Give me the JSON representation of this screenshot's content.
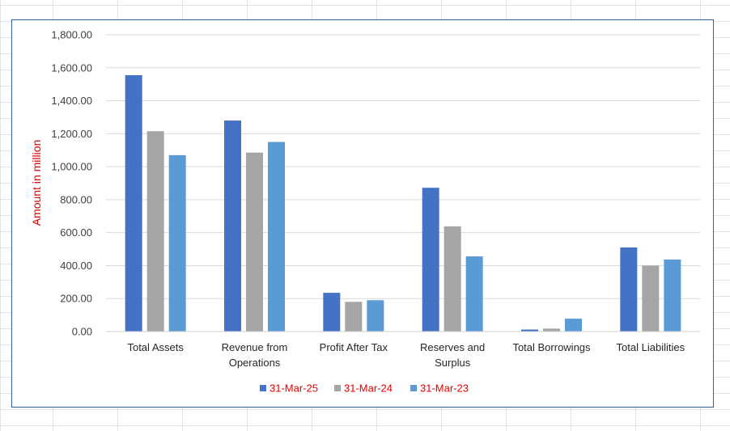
{
  "chart_data": {
    "type": "bar",
    "title": "",
    "xlabel": "",
    "ylabel": "Amount in million",
    "ylim": [
      0,
      1800
    ],
    "y_ticks": [
      "0.00",
      "200.00",
      "400.00",
      "600.00",
      "800.00",
      "1,000.00",
      "1,200.00",
      "1,400.00",
      "1,600.00",
      "1,800.00"
    ],
    "categories": [
      [
        "Total Assets"
      ],
      [
        "Revenue from",
        "Operations"
      ],
      [
        "Profit After Tax"
      ],
      [
        "Reserves and",
        "Surplus"
      ],
      [
        "Total Borrowings"
      ],
      [
        "Total Liabilities"
      ]
    ],
    "series": [
      {
        "name": "31-Mar-25",
        "color": "#4472c4",
        "values": [
          1555,
          1280,
          235,
          872,
          12,
          510
        ]
      },
      {
        "name": "31-Mar-24",
        "color": "#a5a5a5",
        "values": [
          1215,
          1085,
          180,
          638,
          18,
          400
        ]
      },
      {
        "name": "31-Mar-23",
        "color": "#5b9bd5",
        "values": [
          1070,
          1150,
          190,
          456,
          78,
          437
        ]
      }
    ],
    "grid": true,
    "legend_position": "bottom",
    "ylabel_color": "#e00000",
    "legend_text_color": "#e00000",
    "axis_text_color": "#404040",
    "gridline_color": "#d9d9d9",
    "frame_color": "#2e5f9e"
  }
}
